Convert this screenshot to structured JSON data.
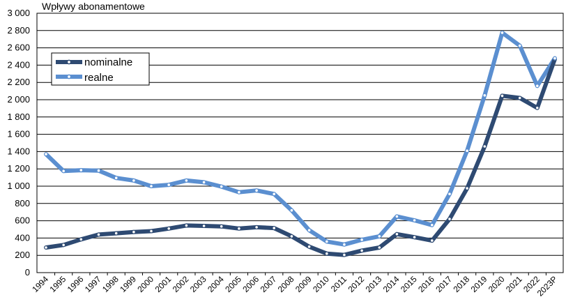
{
  "chart_data": {
    "type": "line",
    "ylabel": "Wpływy abonamentowe",
    "ylim": [
      0,
      3000
    ],
    "yticks": [
      "0",
      "200",
      "400",
      "600",
      "800",
      "1 000",
      "1 200",
      "1 400",
      "1 600",
      "1 800",
      "2 000",
      "2 200",
      "2 400",
      "2 600",
      "2 800",
      "3 000"
    ],
    "grid": true,
    "legend_position": "top-left",
    "categories": [
      "1994",
      "1995",
      "1996",
      "1997",
      "1998",
      "1999",
      "2000",
      "2001",
      "2002",
      "2003",
      "2004",
      "2005",
      "2006",
      "2007",
      "2008",
      "2009",
      "2010",
      "2011",
      "2012",
      "2013",
      "2014",
      "2015",
      "2016",
      "2017",
      "2018",
      "2019",
      "2020",
      "2021",
      "2022",
      "2023P"
    ],
    "series": [
      {
        "name": "nominalne",
        "color": "#2E4A72",
        "values": [
          290,
          320,
          385,
          440,
          455,
          470,
          480,
          510,
          545,
          540,
          535,
          510,
          525,
          515,
          420,
          300,
          220,
          205,
          255,
          290,
          445,
          410,
          370,
          620,
          975,
          1460,
          2045,
          2020,
          1905,
          2470
        ]
      },
      {
        "name": "realne",
        "color": "#5B8FD0",
        "values": [
          1370,
          1175,
          1185,
          1180,
          1095,
          1065,
          1000,
          1015,
          1065,
          1045,
          995,
          930,
          950,
          910,
          720,
          490,
          360,
          325,
          380,
          420,
          650,
          605,
          550,
          910,
          1410,
          2050,
          2775,
          2625,
          2160,
          2480
        ]
      }
    ]
  }
}
